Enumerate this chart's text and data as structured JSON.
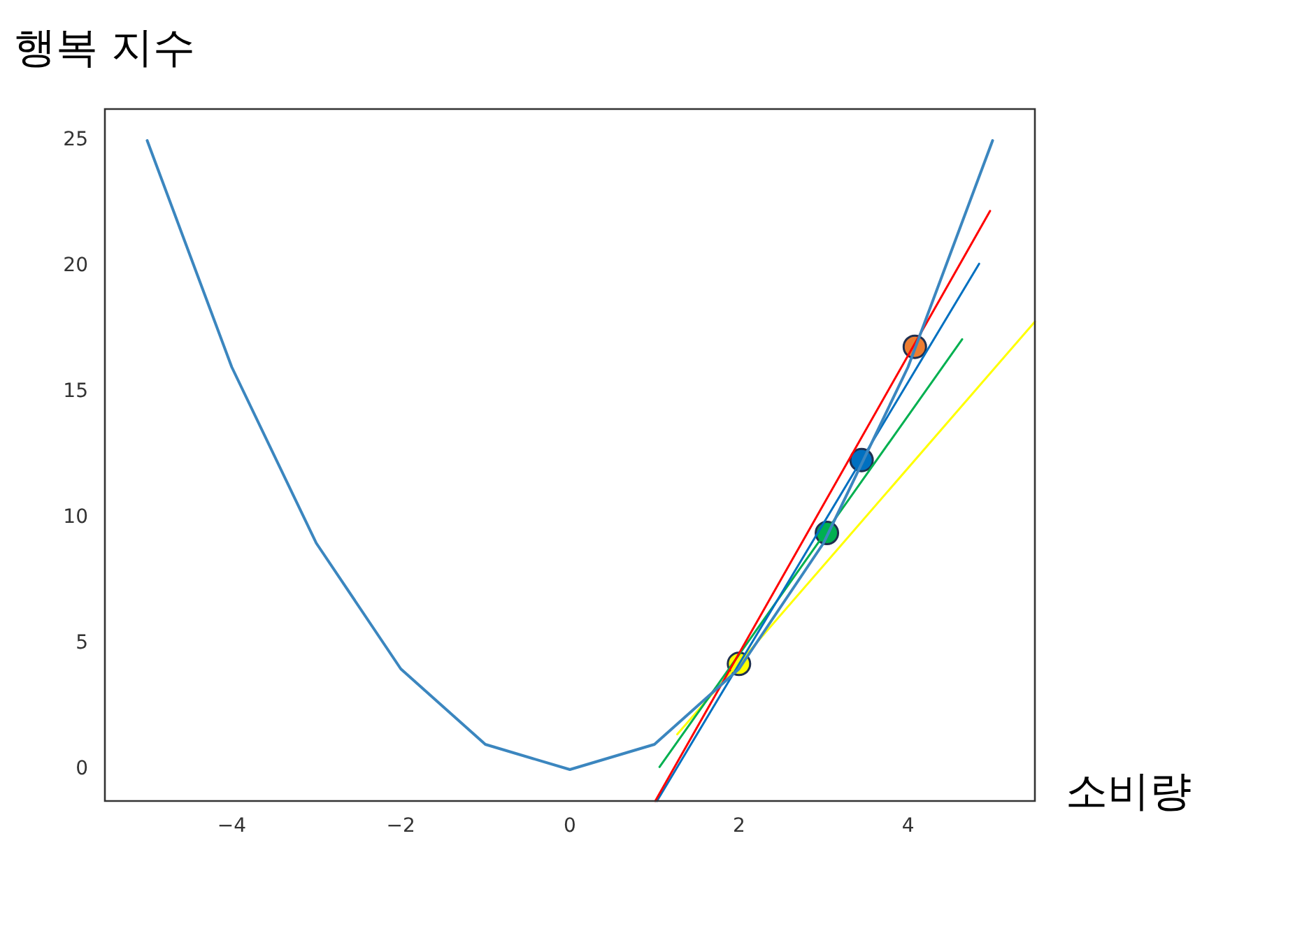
{
  "chart_data": {
    "type": "line",
    "xlabel": "소비량",
    "ylabel": "행복 지수",
    "marker": "none",
    "line_style": "solid",
    "grid": false,
    "legend": false,
    "xlim": [
      -5.5,
      5.5
    ],
    "xticks": [
      {
        "value": -4,
        "label": "−4"
      },
      {
        "value": -2,
        "label": "−2"
      },
      0,
      2,
      4
    ],
    "ylim": [
      -1.25,
      26.25
    ],
    "yticks": [
      0,
      5,
      10,
      15,
      20,
      25
    ],
    "series": [
      {
        "color": "#3b86bf",
        "x": [
          -5,
          -4,
          -3,
          -2,
          -1,
          0,
          1,
          2,
          3,
          4,
          5
        ],
        "values": [
          25,
          16,
          9,
          4,
          1,
          0,
          1,
          4,
          9,
          16,
          25
        ]
      },
      {
        "color": "#ff0000",
        "x": [
          1.01,
          4.97
        ],
        "values": [
          -1.25,
          22.2
        ]
      },
      {
        "color": "#0070c0",
        "x": [
          1.03,
          4.84
        ],
        "values": [
          -1.25,
          20.1
        ]
      },
      {
        "color": "#00b050",
        "x": [
          1.06,
          4.64
        ],
        "values": [
          0.1,
          17.1
        ]
      },
      {
        "color": "#ffff00",
        "x": [
          1.27,
          5.5
        ],
        "values": [
          1.4,
          17.8
        ]
      },
      {
        "type": "scatter",
        "marker": "circle",
        "x": [
          2,
          3.04,
          3.45,
          4.08
        ],
        "values": [
          4.2,
          9.4,
          12.3,
          16.8
        ],
        "colors": [
          "#ffff00",
          "#00b050",
          "#0070c0",
          "#ed7d31"
        ]
      }
    ]
  }
}
